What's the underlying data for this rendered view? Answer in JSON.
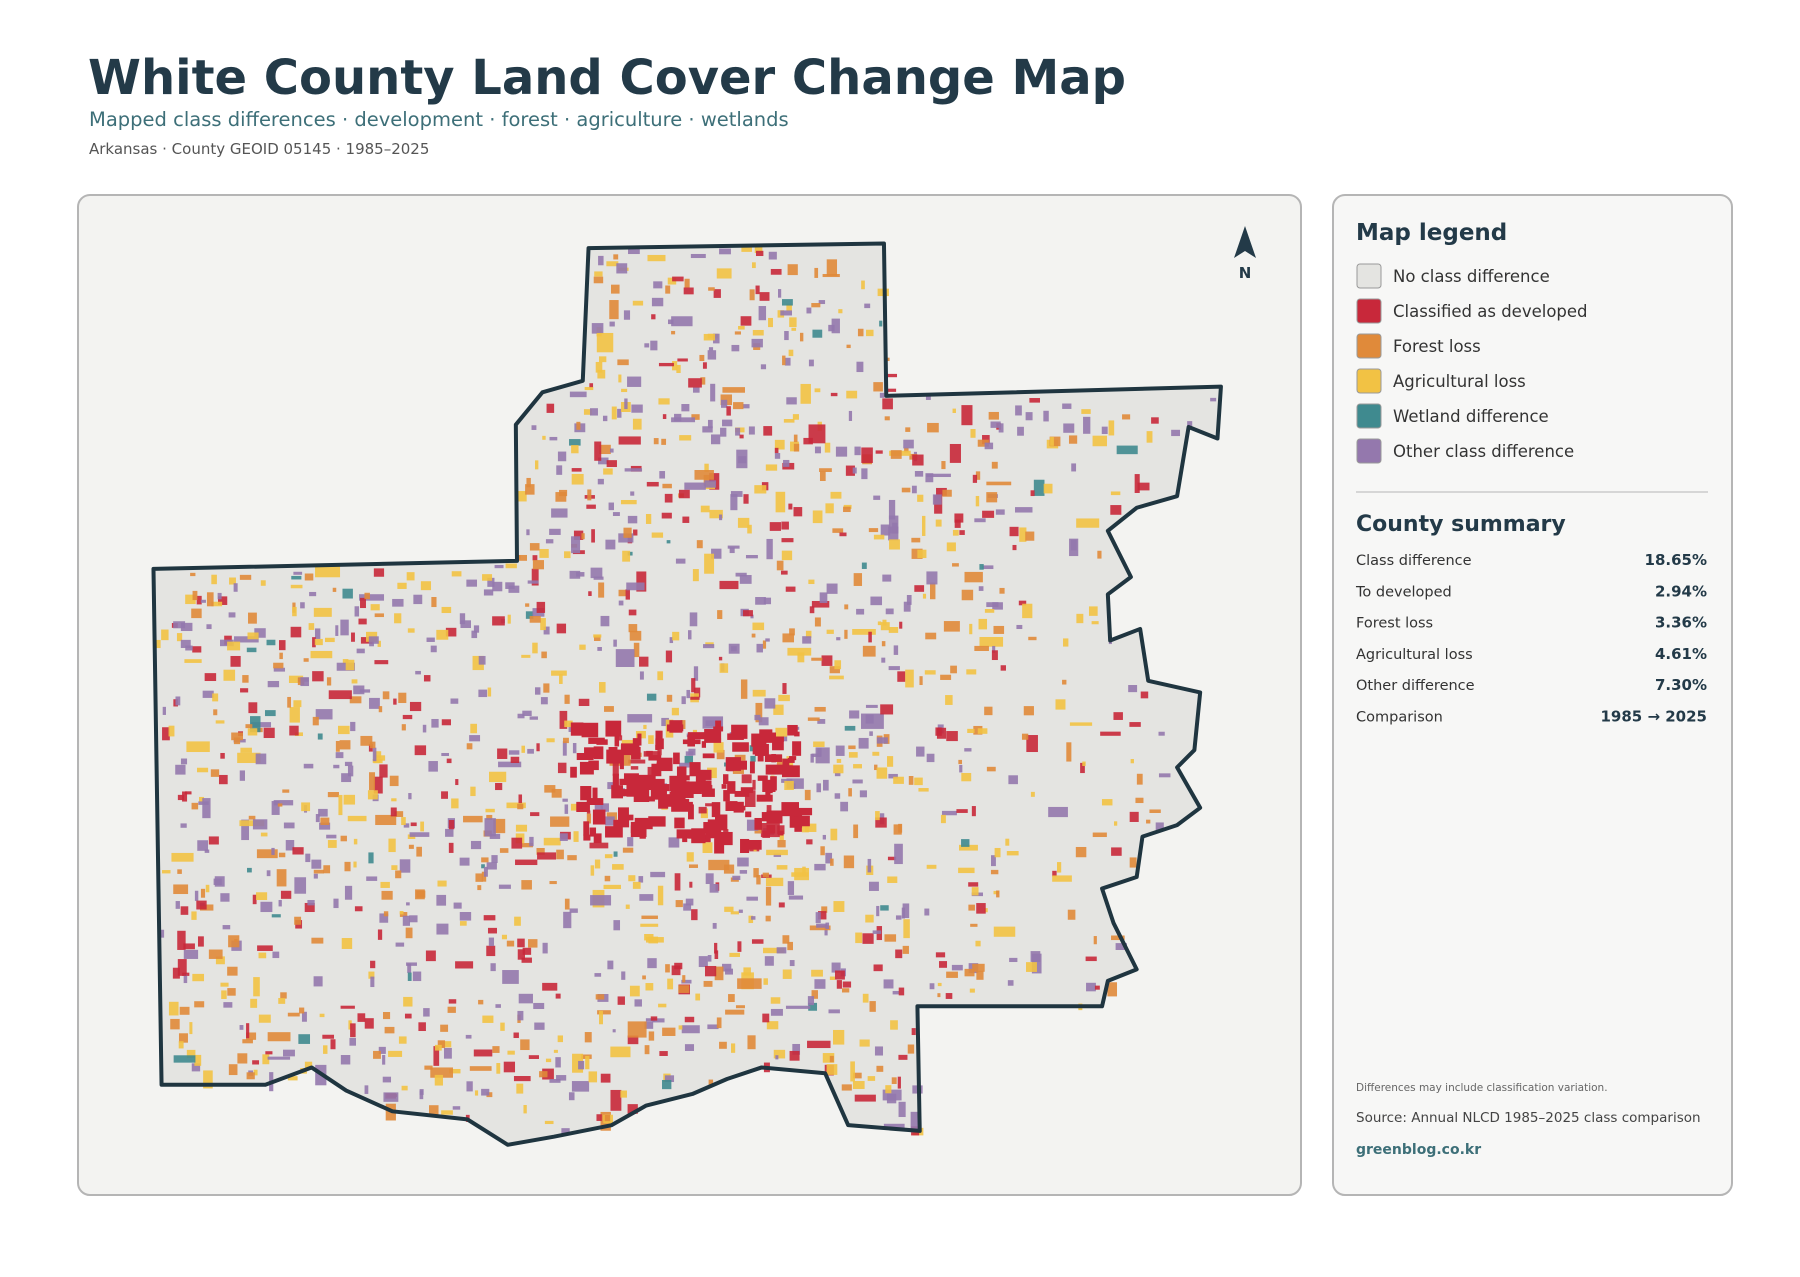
{
  "header": {
    "title": "White County Land Cover Change Map",
    "subtitle": "Mapped class differences · development · forest · agriculture · wetlands",
    "meta": "Arkansas · County GEOID 05145 · 1985–2025"
  },
  "map": {
    "north_label": "N"
  },
  "legend": {
    "title": "Map legend",
    "items": [
      {
        "label": "No class difference",
        "color": "#e4e4e1"
      },
      {
        "label": "Classified as developed",
        "color": "#c8283a"
      },
      {
        "label": "Forest loss",
        "color": "#e08a3a"
      },
      {
        "label": "Agricultural loss",
        "color": "#f2c244"
      },
      {
        "label": "Wetland difference",
        "color": "#3f8a8f"
      },
      {
        "label": "Other class difference",
        "color": "#9478ad"
      }
    ]
  },
  "summary": {
    "title": "County summary",
    "rows": [
      [
        "Class difference",
        "18.65%"
      ],
      [
        "To developed",
        "2.94%"
      ],
      [
        "Forest loss",
        "3.36%"
      ],
      [
        "Agricultural loss",
        "4.61%"
      ],
      [
        "Other difference",
        "7.30%"
      ],
      [
        "Comparison",
        "1985 → 2025"
      ]
    ]
  },
  "footer": {
    "note": "Differences may include classification variation.",
    "source": "Source: Annual NLCD 1985–2025 class comparison",
    "credit": "greenblog.co.kr"
  }
}
